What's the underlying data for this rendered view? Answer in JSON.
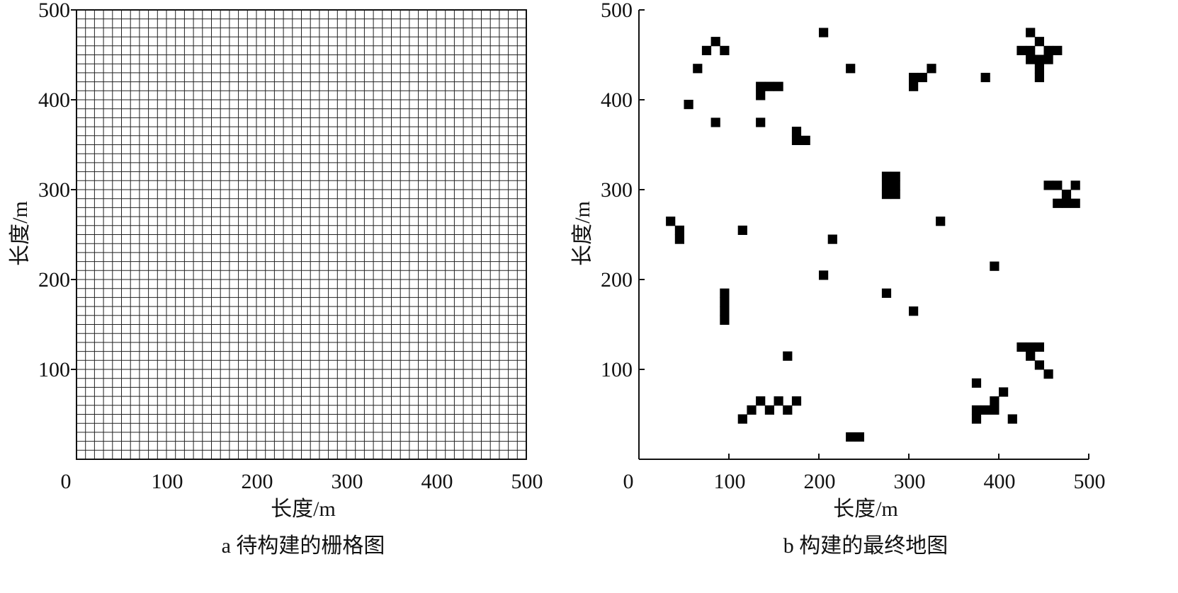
{
  "chart_data": [
    {
      "type": "heatmap",
      "xlabel": "长度/m",
      "ylabel": "长度/m",
      "xlim": [
        0,
        500
      ],
      "ylim": [
        0,
        500
      ],
      "x_ticks": [
        "0",
        "100",
        "200",
        "300",
        "400",
        "500"
      ],
      "y_ticks": [
        "100",
        "200",
        "300",
        "400",
        "500"
      ],
      "grid": true,
      "cell_size": 10,
      "caption": "a 待构建的栅格图"
    },
    {
      "type": "heatmap",
      "xlabel": "长度/m",
      "ylabel": "长度/m",
      "xlim": [
        0,
        500
      ],
      "ylim": [
        0,
        500
      ],
      "x_ticks": [
        "0",
        "100",
        "200",
        "300",
        "400",
        "500"
      ],
      "y_ticks": [
        "100",
        "200",
        "300",
        "400",
        "500"
      ],
      "grid": false,
      "cell_size": 10,
      "caption": "b 构建的最终地图",
      "obstacle_color": "#000000",
      "obstacles": [
        [
          80,
          460
        ],
        [
          70,
          450
        ],
        [
          90,
          450
        ],
        [
          60,
          430
        ],
        [
          50,
          390
        ],
        [
          80,
          370
        ],
        [
          200,
          470
        ],
        [
          230,
          430
        ],
        [
          130,
          410
        ],
        [
          140,
          410
        ],
        [
          150,
          410
        ],
        [
          130,
          400
        ],
        [
          130,
          370
        ],
        [
          170,
          360
        ],
        [
          170,
          350
        ],
        [
          180,
          350
        ],
        [
          300,
          420
        ],
        [
          310,
          420
        ],
        [
          320,
          430
        ],
        [
          300,
          410
        ],
        [
          380,
          420
        ],
        [
          430,
          470
        ],
        [
          440,
          460
        ],
        [
          420,
          450
        ],
        [
          430,
          450
        ],
        [
          450,
          450
        ],
        [
          460,
          450
        ],
        [
          430,
          440
        ],
        [
          440,
          440
        ],
        [
          450,
          440
        ],
        [
          440,
          430
        ],
        [
          440,
          420
        ],
        [
          270,
          310
        ],
        [
          280,
          310
        ],
        [
          270,
          300
        ],
        [
          280,
          300
        ],
        [
          270,
          290
        ],
        [
          280,
          290
        ],
        [
          450,
          300
        ],
        [
          460,
          300
        ],
        [
          480,
          300
        ],
        [
          470,
          290
        ],
        [
          460,
          280
        ],
        [
          470,
          280
        ],
        [
          480,
          280
        ],
        [
          30,
          260
        ],
        [
          40,
          250
        ],
        [
          40,
          240
        ],
        [
          110,
          250
        ],
        [
          210,
          240
        ],
        [
          330,
          260
        ],
        [
          390,
          210
        ],
        [
          200,
          200
        ],
        [
          90,
          180
        ],
        [
          90,
          170
        ],
        [
          90,
          160
        ],
        [
          90,
          150
        ],
        [
          270,
          180
        ],
        [
          300,
          160
        ],
        [
          420,
          120
        ],
        [
          430,
          120
        ],
        [
          440,
          120
        ],
        [
          430,
          110
        ],
        [
          440,
          100
        ],
        [
          450,
          90
        ],
        [
          160,
          110
        ],
        [
          130,
          60
        ],
        [
          150,
          60
        ],
        [
          170,
          60
        ],
        [
          120,
          50
        ],
        [
          140,
          50
        ],
        [
          160,
          50
        ],
        [
          110,
          40
        ],
        [
          370,
          80
        ],
        [
          400,
          70
        ],
        [
          390,
          60
        ],
        [
          370,
          50
        ],
        [
          380,
          50
        ],
        [
          390,
          50
        ],
        [
          370,
          40
        ],
        [
          410,
          40
        ],
        [
          230,
          20
        ],
        [
          240,
          20
        ]
      ]
    }
  ]
}
